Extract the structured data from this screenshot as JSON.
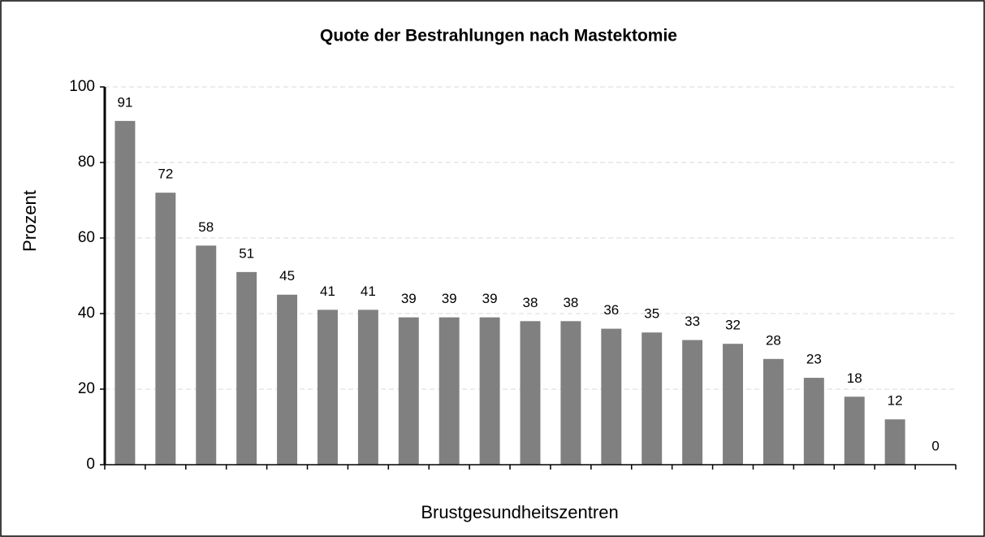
{
  "chart_data": {
    "type": "bar",
    "title": "Quote der Bestrahlungen nach Mastektomie",
    "x_label": "Brustgesundheitszentren",
    "y_label": "Prozent",
    "categories": [
      null,
      null,
      null,
      null,
      null,
      null,
      null,
      null,
      null,
      null,
      null,
      null,
      null,
      null,
      null,
      null,
      null,
      null,
      null,
      null,
      null
    ],
    "values": [
      91,
      72,
      58,
      51,
      45,
      41,
      41,
      39,
      39,
      39,
      38,
      38,
      36,
      35,
      33,
      32,
      28,
      23,
      18,
      12,
      0
    ],
    "color": "#808080",
    "ylim": [
      0,
      100
    ],
    "yticks": [
      0,
      20,
      40,
      60,
      80,
      100
    ],
    "grid": true
  }
}
